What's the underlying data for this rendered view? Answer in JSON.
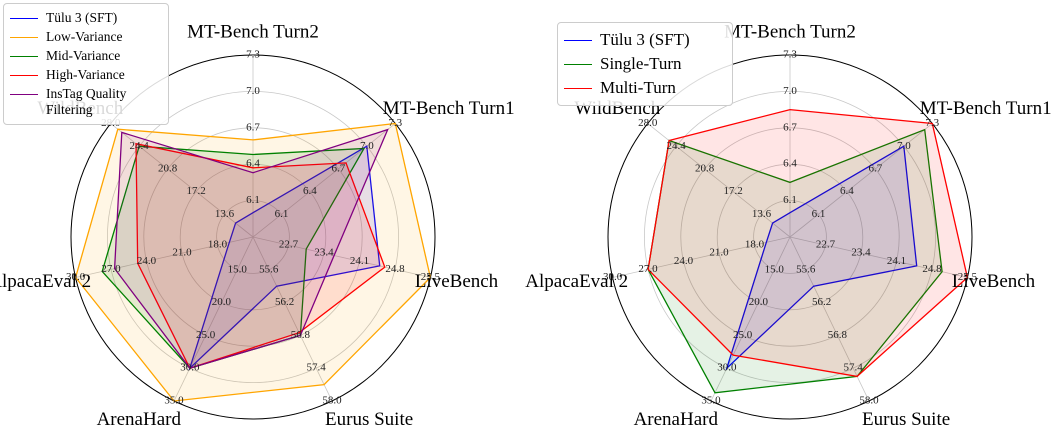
{
  "chart_data": [
    {
      "type": "radar",
      "legend": "upper left",
      "axes": [
        {
          "label": "MT-Bench Turn2",
          "lim": [
            5.8,
            7.3
          ],
          "ticks": [
            6.1,
            6.4,
            6.7,
            {
              "value": 7.0,
              "label": "7.0"
            },
            7.3
          ]
        },
        {
          "label": "MT-Bench Turn1",
          "lim": [
            5.8,
            7.3
          ],
          "ticks": [
            6.1,
            6.4,
            6.7,
            {
              "value": 7.0,
              "label": "7.0"
            },
            7.3
          ]
        },
        {
          "label": "LiveBench",
          "lim": [
            22.0,
            25.5
          ],
          "ticks": [
            22.7,
            23.4,
            24.1,
            24.8,
            25.5
          ]
        },
        {
          "label": "Eurus Suite",
          "lim": [
            55.0,
            58.0
          ],
          "ticks": [
            55.6,
            56.2,
            56.8,
            57.4,
            {
              "value": 58,
              "label": "58.0"
            }
          ]
        },
        {
          "label": "ArenaHard",
          "lim": [
            10,
            35
          ],
          "ticks": [
            {
              "value": 15,
              "label": "15.0"
            },
            {
              "value": 20,
              "label": "20.0"
            },
            {
              "value": 25,
              "label": "25.0"
            },
            {
              "value": 30,
              "label": "30.0"
            },
            {
              "value": 35,
              "label": "35.0"
            }
          ]
        },
        {
          "label": "AlpacaEval 2",
          "lim": [
            15,
            30
          ],
          "ticks": [
            {
              "value": 18,
              "label": "18.0"
            },
            {
              "value": 21,
              "label": "21.0"
            },
            {
              "value": 24,
              "label": "24.0"
            },
            {
              "value": 27,
              "label": "27.0"
            },
            {
              "value": 30,
              "label": "30.0"
            }
          ]
        },
        {
          "label": "WildBench",
          "lim": [
            10,
            28
          ],
          "ticks": [
            13.6,
            17.2,
            20.8,
            24.4,
            {
              "value": 28,
              "label": "28.0"
            }
          ]
        }
      ],
      "series": [
        {
          "name": "Tülu 3 (SFT)",
          "color": "#0000ff",
          "values": [
            6.0,
            7.0,
            24.5,
            55.9,
            30.0,
            17.0,
            12.2
          ]
        },
        {
          "name": "Low-Variance",
          "color": "#ffa500",
          "values": [
            6.6,
            7.3,
            25.5,
            57.7,
            35.0,
            30.0,
            27.1
          ]
        },
        {
          "name": "Mid-Variance",
          "color": "#008000",
          "values": [
            6.48,
            6.97,
            23.05,
            56.8,
            30.0,
            27.75,
            24.4
          ]
        },
        {
          "name": "High-Variance",
          "color": "#ff0000",
          "values": [
            6.37,
            6.78,
            24.6,
            56.75,
            30.0,
            24.75,
            24.8
          ]
        },
        {
          "name": "InsTag Quality Filtering",
          "color": "#800080",
          "values": [
            6.33,
            7.22,
            23.6,
            56.8,
            30.0,
            26.7,
            26.6
          ]
        }
      ]
    },
    {
      "type": "radar",
      "legend": "upper left",
      "axes": [
        {
          "label": "MT-Bench Turn2",
          "lim": [
            5.8,
            7.3
          ],
          "ticks": [
            6.1,
            6.4,
            6.7,
            {
              "value": 7.0,
              "label": "7.0"
            },
            7.3
          ]
        },
        {
          "label": "MT-Bench Turn1",
          "lim": [
            5.8,
            7.3
          ],
          "ticks": [
            6.1,
            6.4,
            6.7,
            {
              "value": 7.0,
              "label": "7.0"
            },
            7.3
          ]
        },
        {
          "label": "LiveBench",
          "lim": [
            22.0,
            25.5
          ],
          "ticks": [
            22.7,
            23.4,
            24.1,
            24.8,
            25.5
          ]
        },
        {
          "label": "Eurus Suite",
          "lim": [
            55.0,
            58.0
          ],
          "ticks": [
            55.6,
            56.2,
            56.8,
            57.4,
            {
              "value": 58,
              "label": "58.0"
            }
          ]
        },
        {
          "label": "ArenaHard",
          "lim": [
            10,
            35
          ],
          "ticks": [
            {
              "value": 15,
              "label": "15.0"
            },
            {
              "value": 20,
              "label": "20.0"
            },
            {
              "value": 25,
              "label": "25.0"
            },
            {
              "value": 30,
              "label": "30.0"
            },
            {
              "value": 35,
              "label": "35.0"
            }
          ]
        },
        {
          "label": "AlpacaEval 2",
          "lim": [
            15,
            30
          ],
          "ticks": [
            {
              "value": 18,
              "label": "18.0"
            },
            {
              "value": 21,
              "label": "21.0"
            },
            {
              "value": 24,
              "label": "24.0"
            },
            {
              "value": 27,
              "label": "27.0"
            },
            {
              "value": 30,
              "label": "30.0"
            }
          ]
        },
        {
          "label": "WildBench",
          "lim": [
            10,
            28
          ],
          "ticks": [
            13.6,
            17.2,
            20.8,
            24.4,
            {
              "value": 28,
              "label": "28.0"
            }
          ]
        }
      ],
      "series": [
        {
          "name": "Tülu 3 (SFT)",
          "color": "#0000ff",
          "values": [
            6.0,
            7.0,
            24.5,
            55.9,
            30.0,
            17.0,
            12.2
          ]
        },
        {
          "name": "Single-Turn",
          "color": "#008000",
          "values": [
            6.25,
            7.22,
            25.0,
            57.55,
            33.75,
            27.0,
            25.3
          ]
        },
        {
          "name": "Multi-Turn",
          "color": "#ff0000",
          "values": [
            6.85,
            7.3,
            25.5,
            57.55,
            28.0,
            27.0,
            25.3
          ]
        }
      ]
    }
  ]
}
